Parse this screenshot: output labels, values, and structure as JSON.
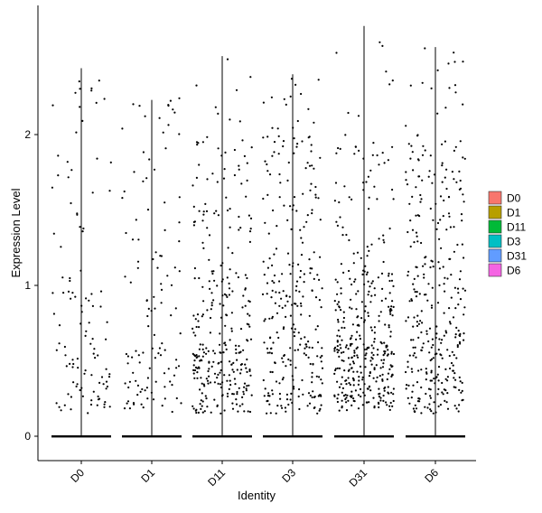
{
  "chart_data": {
    "type": "violin",
    "xlabel": "Identity",
    "ylabel": "Expression Level",
    "categories": [
      "D0",
      "D1",
      "D11",
      "D3",
      "D31",
      "D6"
    ],
    "ylim": [
      -0.15,
      2.8
    ],
    "yticks": [
      0,
      1,
      2
    ],
    "max_values": [
      2.44,
      2.23,
      2.52,
      2.4,
      2.72,
      2.58
    ],
    "point_counts": [
      110,
      115,
      300,
      280,
      380,
      330
    ],
    "point_density": [
      [
        [
          0.15,
          0.6,
          0.55
        ],
        [
          0.6,
          1.1,
          0.25
        ],
        [
          1.1,
          2.0,
          0.12
        ],
        [
          2.0,
          2.45,
          0.08
        ]
      ],
      [
        [
          0.15,
          0.6,
          0.45
        ],
        [
          0.6,
          1.1,
          0.25
        ],
        [
          1.1,
          2.0,
          0.2
        ],
        [
          2.0,
          2.25,
          0.1
        ]
      ],
      [
        [
          0.15,
          0.6,
          0.48
        ],
        [
          0.6,
          1.1,
          0.27
        ],
        [
          1.1,
          2.0,
          0.2
        ],
        [
          2.0,
          2.52,
          0.05
        ]
      ],
      [
        [
          0.15,
          0.6,
          0.38
        ],
        [
          0.6,
          1.1,
          0.32
        ],
        [
          1.1,
          2.0,
          0.25
        ],
        [
          2.0,
          2.4,
          0.05
        ]
      ],
      [
        [
          0.15,
          0.6,
          0.55
        ],
        [
          0.6,
          1.1,
          0.3
        ],
        [
          1.1,
          2.0,
          0.12
        ],
        [
          2.0,
          2.72,
          0.03
        ]
      ],
      [
        [
          0.15,
          0.6,
          0.35
        ],
        [
          0.6,
          1.1,
          0.3
        ],
        [
          1.1,
          2.0,
          0.3
        ],
        [
          2.0,
          2.58,
          0.05
        ]
      ]
    ],
    "legend": {
      "position": "right",
      "entries": [
        {
          "label": "D0",
          "color": "#F8766D"
        },
        {
          "label": "D1",
          "color": "#B79F00"
        },
        {
          "label": "D11",
          "color": "#00BA38"
        },
        {
          "label": "D3",
          "color": "#00BFC4"
        },
        {
          "label": "D31",
          "color": "#619CFF"
        },
        {
          "label": "D6",
          "color": "#F564E3"
        }
      ]
    },
    "grid": false
  }
}
